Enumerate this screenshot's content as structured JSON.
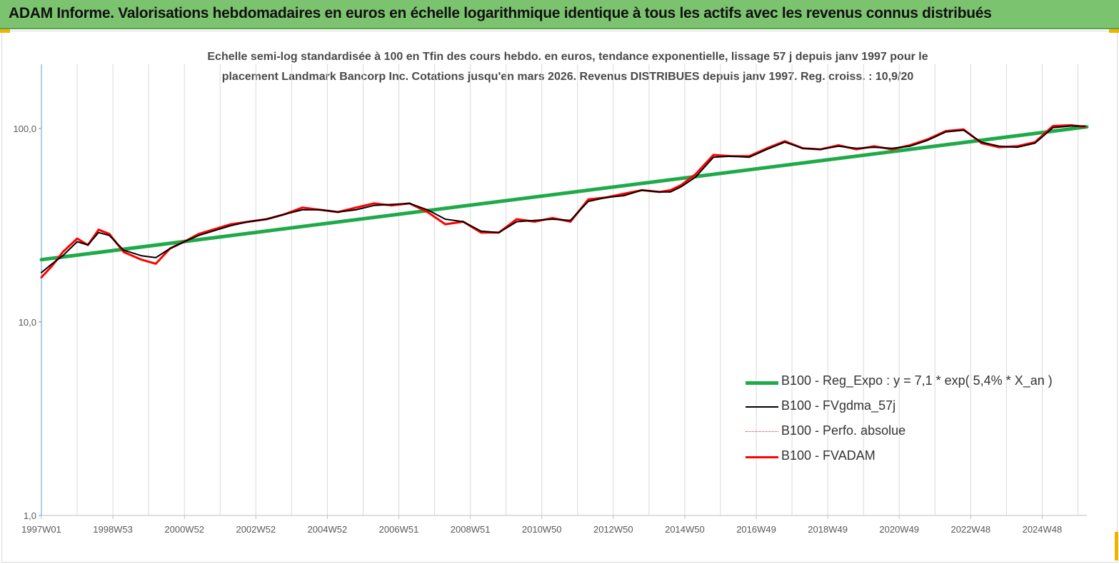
{
  "header": {
    "title": "ADAM Informe. Valorisations hebdomadaires en euros en échelle logarithmique identique à tous les actifs avec les revenus connus distribués",
    "background_color": "#7cc36f"
  },
  "chart_data": {
    "type": "line",
    "title": "",
    "subtitle_line1": "Echelle semi-log standardisée à 100 en Tfin des cours hebdo. en euros, tendance exponentielle, lissage 57 j depuis janv 1997 pour le",
    "subtitle_line2": "placement Landmark Bancorp Inc. Cotations jusqu'en mars 2026. Revenus DISTRIBUES depuis janv 1997. Reg. croiss. : 10,9/20",
    "xlabel": "",
    "ylabel": "",
    "y_scale": "log",
    "ylim": [
      1,
      200
    ],
    "xlim": [
      1997.0,
      2026.25
    ],
    "y_ticks": [
      {
        "value": 1,
        "label": "1,0"
      },
      {
        "value": 10,
        "label": "10,0"
      },
      {
        "value": 100,
        "label": "100,0"
      }
    ],
    "x_ticks": [
      {
        "value": 1997.0,
        "label": "1997W01"
      },
      {
        "value": 1999.0,
        "label": "1998W53"
      },
      {
        "value": 2001.0,
        "label": "2000W52"
      },
      {
        "value": 2003.0,
        "label": "2002W52"
      },
      {
        "value": 2005.0,
        "label": "2004W52"
      },
      {
        "value": 2007.0,
        "label": "2006W51"
      },
      {
        "value": 2009.0,
        "label": "2008W51"
      },
      {
        "value": 2011.0,
        "label": "2010W50"
      },
      {
        "value": 2013.0,
        "label": "2012W50"
      },
      {
        "value": 2015.0,
        "label": "2014W50"
      },
      {
        "value": 2017.0,
        "label": "2016W49"
      },
      {
        "value": 2019.0,
        "label": "2018W49"
      },
      {
        "value": 2021.0,
        "label": "2020W49"
      },
      {
        "value": 2023.0,
        "label": "2022W48"
      },
      {
        "value": 2025.0,
        "label": "2024W48"
      }
    ],
    "grid": {
      "vertical": true,
      "horizontal": false
    },
    "legend_position": "right",
    "series": [
      {
        "name": "B100 - Reg_Expo : y = 7,1 * exp( 5,4% *  X_an )",
        "color": "#1faa4a",
        "style": "solid",
        "x": [
          1997.0,
          2026.25
        ],
        "values": [
          21.0,
          102.0
        ]
      },
      {
        "name": "B100 - FVgdma_57j",
        "color": "#000000",
        "style": "solid",
        "x": [
          1997.0,
          1997.3,
          1997.6,
          1998.0,
          1998.3,
          1998.6,
          1998.9,
          1999.3,
          1999.8,
          2000.2,
          2000.6,
          2001.0,
          2001.4,
          2001.8,
          2002.3,
          2002.8,
          2003.3,
          2003.8,
          2004.3,
          2004.8,
          2005.3,
          2005.8,
          2006.3,
          2006.8,
          2007.3,
          2007.8,
          2008.3,
          2008.8,
          2009.3,
          2009.8,
          2010.3,
          2010.8,
          2011.3,
          2011.8,
          2012.3,
          2012.8,
          2013.3,
          2013.8,
          2014.3,
          2014.6,
          2014.9,
          2015.3,
          2015.8,
          2016.3,
          2016.8,
          2017.3,
          2017.8,
          2018.3,
          2018.8,
          2019.3,
          2019.8,
          2020.3,
          2020.8,
          2021.3,
          2021.8,
          2022.3,
          2022.8,
          2023.3,
          2023.8,
          2024.3,
          2024.8,
          2025.3,
          2025.8,
          2026.2
        ],
        "values": [
          18.0,
          20.0,
          22.0,
          26.0,
          25.0,
          29.0,
          28.0,
          23.5,
          22.0,
          21.5,
          24.0,
          26.0,
          28.0,
          29.5,
          31.5,
          33.0,
          34.0,
          36.0,
          38.0,
          38.0,
          37.0,
          38.0,
          40.0,
          40.5,
          41.0,
          38.0,
          34.0,
          33.0,
          29.5,
          29.0,
          33.0,
          33.5,
          34.0,
          33.5,
          42.0,
          44.0,
          45.0,
          48.0,
          47.0,
          47.0,
          50.0,
          56.0,
          71.0,
          72.0,
          71.0,
          78.0,
          85.0,
          79.0,
          78.0,
          81.0,
          79.0,
          80.0,
          79.0,
          81.0,
          87.0,
          96.0,
          98.0,
          85.0,
          81.0,
          80.0,
          84.0,
          101.0,
          103.0,
          103.0
        ]
      },
      {
        "name": "B100 - Perfo. absolue",
        "color": "#ff2a2a",
        "style": "dotted",
        "x": [
          1997.0,
          1997.3,
          1997.6,
          1998.0,
          1998.3,
          1998.6,
          1998.9,
          1999.3,
          1999.8,
          2000.2,
          2000.6,
          2001.0,
          2001.4,
          2001.8,
          2002.3,
          2002.8,
          2003.3,
          2003.8,
          2004.3,
          2004.8,
          2005.3,
          2005.8,
          2006.3,
          2006.8,
          2007.3,
          2007.8,
          2008.3,
          2008.8,
          2009.3,
          2009.8,
          2010.3,
          2010.8,
          2011.3,
          2011.8,
          2012.3,
          2012.8,
          2013.3,
          2013.8,
          2014.3,
          2014.6,
          2014.9,
          2015.3,
          2015.8,
          2016.3,
          2016.8,
          2017.3,
          2017.8,
          2018.3,
          2018.8,
          2019.3,
          2019.8,
          2020.3,
          2020.8,
          2021.3,
          2021.8,
          2022.3,
          2022.8,
          2023.3,
          2023.8,
          2024.3,
          2024.8,
          2025.3,
          2025.8,
          2026.2
        ],
        "values": [
          17.0,
          19.5,
          23.0,
          27.0,
          25.0,
          30.0,
          28.5,
          23.0,
          21.0,
          20.0,
          24.0,
          26.0,
          28.5,
          30.0,
          32.0,
          33.0,
          34.0,
          36.0,
          39.0,
          38.0,
          37.0,
          39.0,
          41.0,
          40.0,
          41.0,
          37.0,
          32.0,
          33.0,
          29.0,
          29.0,
          34.0,
          33.0,
          34.5,
          33.0,
          43.0,
          44.0,
          46.0,
          48.0,
          47.0,
          48.0,
          51.0,
          58.0,
          73.0,
          72.0,
          72.0,
          79.0,
          86.0,
          79.0,
          78.0,
          82.0,
          78.0,
          81.0,
          78.0,
          82.0,
          88.0,
          97.0,
          99.0,
          84.0,
          80.0,
          81.0,
          85.0,
          103.0,
          104.0,
          102.0
        ]
      },
      {
        "name": "B100 - FVADAM",
        "color": "#ff0000",
        "style": "solid",
        "x": [
          1997.0,
          1997.3,
          1997.6,
          1998.0,
          1998.3,
          1998.6,
          1998.9,
          1999.3,
          1999.8,
          2000.2,
          2000.6,
          2001.0,
          2001.4,
          2001.8,
          2002.3,
          2002.8,
          2003.3,
          2003.8,
          2004.3,
          2004.8,
          2005.3,
          2005.8,
          2006.3,
          2006.8,
          2007.3,
          2007.8,
          2008.3,
          2008.8,
          2009.3,
          2009.8,
          2010.3,
          2010.8,
          2011.3,
          2011.8,
          2012.3,
          2012.8,
          2013.3,
          2013.8,
          2014.3,
          2014.6,
          2014.9,
          2015.3,
          2015.8,
          2016.3,
          2016.8,
          2017.3,
          2017.8,
          2018.3,
          2018.8,
          2019.3,
          2019.8,
          2020.3,
          2020.8,
          2021.3,
          2021.8,
          2022.3,
          2022.8,
          2023.3,
          2023.8,
          2024.3,
          2024.8,
          2025.3,
          2025.8,
          2026.2
        ],
        "values": [
          17.0,
          19.5,
          23.0,
          27.0,
          25.0,
          30.0,
          28.5,
          23.0,
          21.0,
          20.0,
          24.0,
          26.0,
          28.5,
          30.0,
          32.0,
          33.0,
          34.0,
          36.0,
          39.0,
          38.0,
          37.0,
          39.0,
          41.0,
          40.0,
          41.0,
          37.0,
          32.0,
          33.0,
          29.0,
          29.0,
          34.0,
          33.0,
          34.5,
          33.0,
          43.0,
          44.0,
          46.0,
          48.0,
          47.0,
          48.0,
          51.0,
          58.0,
          73.0,
          72.0,
          72.0,
          79.0,
          86.0,
          79.0,
          78.0,
          82.0,
          78.0,
          81.0,
          78.0,
          82.0,
          88.0,
          97.0,
          99.0,
          84.0,
          80.0,
          81.0,
          85.0,
          103.0,
          104.0,
          102.0
        ]
      }
    ]
  }
}
